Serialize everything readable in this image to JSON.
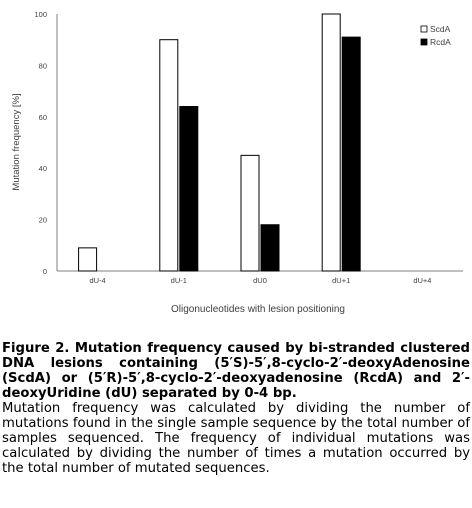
{
  "chart_data": {
    "type": "bar",
    "categories": [
      "dU-4",
      "dU-1",
      "dU0",
      "dU+1",
      "dU+4"
    ],
    "series": [
      {
        "name": "ScdA",
        "values": [
          9,
          90,
          45,
          100,
          null
        ],
        "color": "#ffffff"
      },
      {
        "name": "RcdA",
        "values": [
          null,
          64,
          18,
          91,
          null
        ],
        "color": "#000000"
      }
    ],
    "title": "",
    "xlabel": "Oligonucleotides with lesion positioning",
    "ylabel": "Mutation frequency [%]",
    "ylim": [
      0,
      100
    ],
    "yticks": [
      "0",
      "20",
      "40",
      "60",
      "80",
      "100"
    ],
    "grid": false,
    "legend_position": "top-right"
  },
  "caption": {
    "title": "Figure 2. Mutation frequency caused by bi-stranded clustered DNA lesions containing (5′S)-5′,8-cyclo-2′-deoxyAdenosine (ScdA) or (5′R)-5′,8-cyclo-2′-deoxyadenosine (RcdA) and 2′-deoxyUridine (dU) separated by 0-4 bp.",
    "body": "Mutation frequency was calculated by dividing the number of mutations found in the single sample sequence by the total number of samples sequenced. The frequency of individual mutations was calculated by dividing the number of times a mutation occurred by the total number of mutated sequences."
  }
}
